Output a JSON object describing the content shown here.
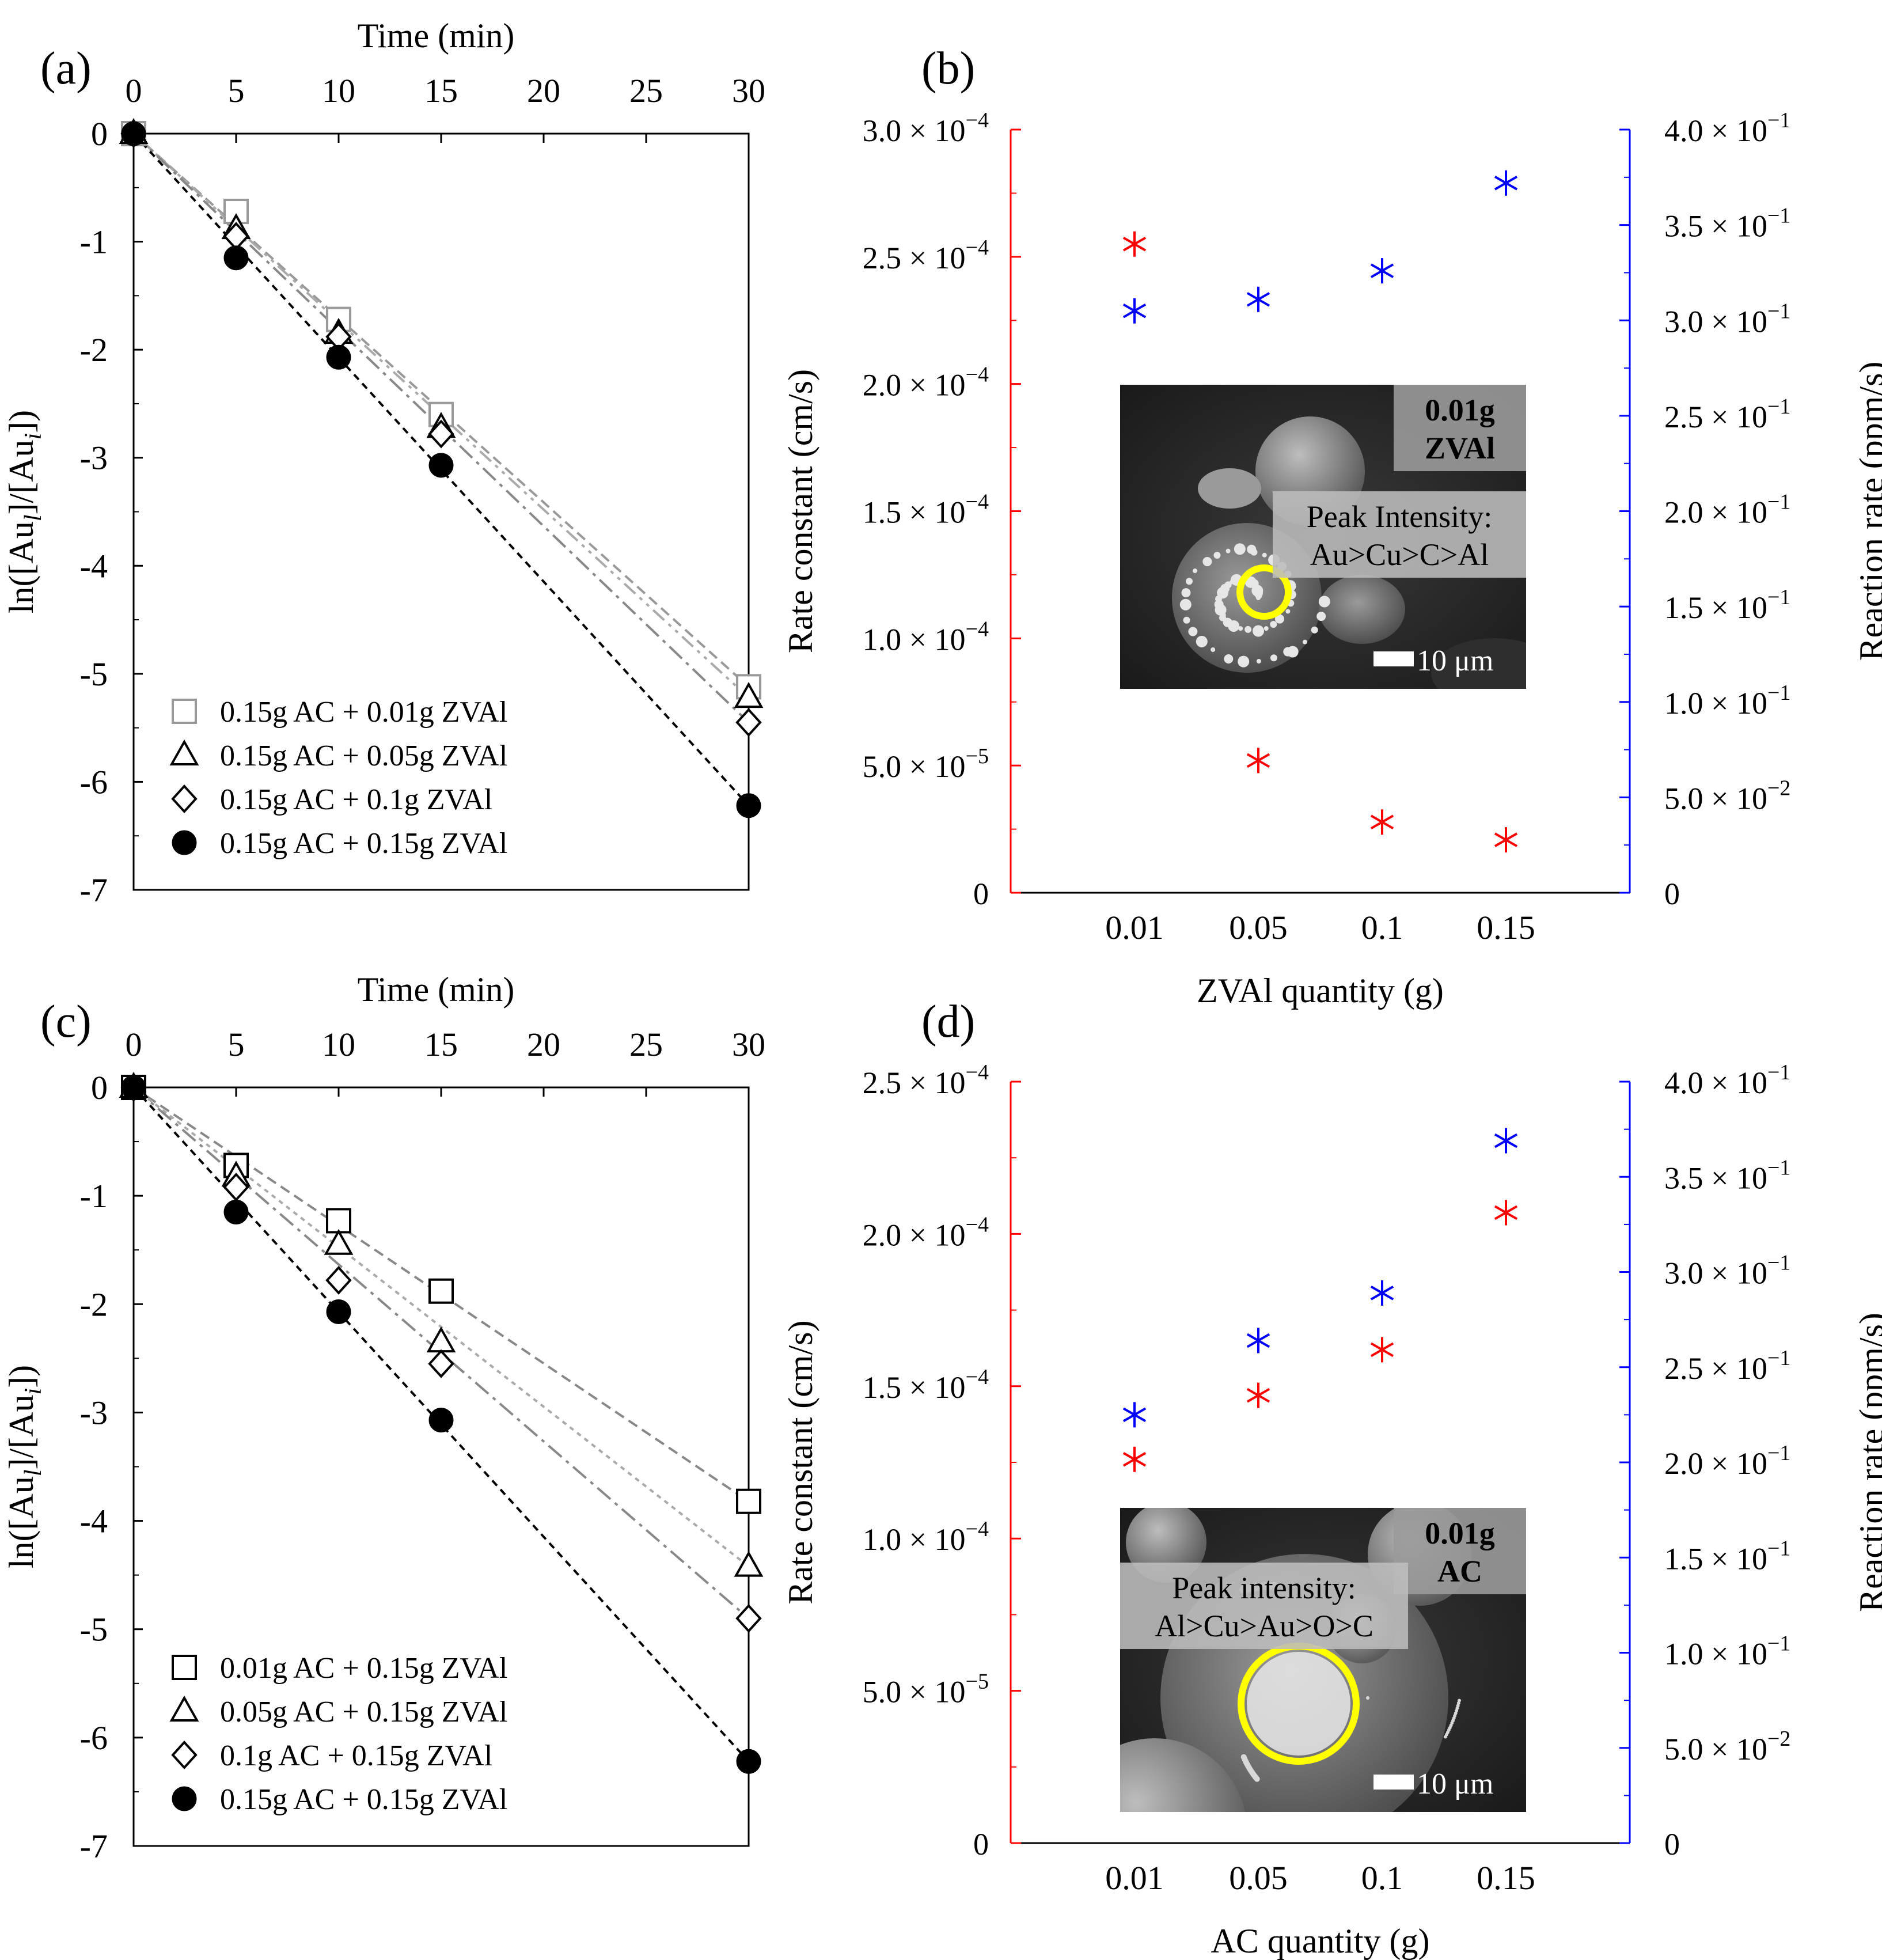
{
  "chart_data": [
    {
      "panel": "(a)",
      "type": "scatter",
      "xlabel": "Time (min)",
      "ylabel_main": "ln([Au",
      "ylabel_sub1": "l",
      "ylabel_mid": "]/[Au",
      "ylabel_sub2": "i",
      "ylabel_end": "])",
      "x_ticks": [
        "0",
        "5",
        "10",
        "15",
        "20",
        "25",
        "30"
      ],
      "y_ticks": [
        "0",
        "-1",
        "-2",
        "-3",
        "-4",
        "-5",
        "-6",
        "-7"
      ],
      "xlim": [
        0,
        30
      ],
      "ylim": [
        -7,
        0
      ],
      "series": [
        {
          "name": "0.15g AC + 0.01g ZVAl",
          "marker": "square",
          "fill": "#ffffff",
          "stroke": "#999999",
          "line": "#999999",
          "dash": "18,10",
          "x": [
            0,
            5,
            10,
            15,
            30
          ],
          "y": [
            0,
            -0.72,
            -1.72,
            -2.6,
            -5.12
          ]
        },
        {
          "name": "0.15g AC + 0.05g ZVAl",
          "marker": "triangle",
          "fill": "#ffffff",
          "stroke": "#000000",
          "line": "#aaaaaa",
          "dash": "26,10,6,10,6,10",
          "x": [
            0,
            5,
            10,
            15,
            30
          ],
          "y": [
            0,
            -0.88,
            -1.85,
            -2.72,
            -5.22
          ]
        },
        {
          "name": "0.15g AC + 0.1g ZVAl",
          "marker": "diamond",
          "fill": "#ffffff",
          "stroke": "#000000",
          "line": "#888888",
          "dash": "30,10,6,10",
          "x": [
            0,
            5,
            10,
            15,
            30
          ],
          "y": [
            0,
            -0.95,
            -1.88,
            -2.78,
            -5.45
          ]
        },
        {
          "name": "0.15g AC + 0.15g ZVAl",
          "marker": "circle",
          "fill": "#000000",
          "stroke": "#000000",
          "line": "#000000",
          "dash": "12,9",
          "x": [
            0,
            5,
            10,
            15,
            30
          ],
          "y": [
            0,
            -1.15,
            -2.07,
            -3.07,
            -6.22
          ]
        }
      ]
    },
    {
      "panel": "(b)",
      "type": "scatter",
      "xlabel": "ZVAl quantity (g)",
      "ylabel": "Rate constant (cm/s)",
      "ylabel2": "Reaction rate (ppm/s)",
      "categories": [
        "0.01",
        "0.05",
        "0.1",
        "0.15"
      ],
      "y_ticks": [
        {
          "v": 0,
          "m": "0",
          "e": ""
        },
        {
          "v": 5e-05,
          "m": "5.0",
          "e": "−5"
        },
        {
          "v": 0.0001,
          "m": "1.0",
          "e": "−4"
        },
        {
          "v": 0.00015,
          "m": "1.5",
          "e": "−4"
        },
        {
          "v": 0.0002,
          "m": "2.0",
          "e": "−4"
        },
        {
          "v": 0.00025,
          "m": "2.5",
          "e": "−4"
        },
        {
          "v": 0.0003,
          "m": "3.0",
          "e": "−4"
        }
      ],
      "y2_ticks": [
        {
          "v": 0,
          "m": "0",
          "e": ""
        },
        {
          "v": 0.05,
          "m": "5.0",
          "e": "−2"
        },
        {
          "v": 0.1,
          "m": "1.0",
          "e": "−1"
        },
        {
          "v": 0.15,
          "m": "1.5",
          "e": "−1"
        },
        {
          "v": 0.2,
          "m": "2.0",
          "e": "−1"
        },
        {
          "v": 0.25,
          "m": "2.5",
          "e": "−1"
        },
        {
          "v": 0.3,
          "m": "3.0",
          "e": "−1"
        },
        {
          "v": 0.35,
          "m": "3.5",
          "e": "−1"
        },
        {
          "v": 0.4,
          "m": "4.0",
          "e": "−1"
        }
      ],
      "times_sign": "× 10",
      "ylim": [
        0,
        0.0003
      ],
      "y2lim": [
        0,
        0.4
      ],
      "axis_colors": {
        "left": "#ff0000",
        "right": "#0000ff"
      },
      "rate_constant": [
        0.000255,
        5.2e-05,
        2.78e-05,
        2.08e-05
      ],
      "reaction_rate": [
        0.305,
        0.311,
        0.326,
        0.372
      ],
      "inset": {
        "label_line1": "0.01g",
        "label_line2": "ZVAl",
        "peak_line1": "Peak Intensity:",
        "peak_line2": "Au>Cu>C>Al",
        "scale": "10 μm"
      }
    },
    {
      "panel": "(c)",
      "type": "scatter",
      "xlabel": "Time (min)",
      "ylabel_main": "ln([Au",
      "ylabel_sub1": "l",
      "ylabel_mid": "]/[Au",
      "ylabel_sub2": "i",
      "ylabel_end": "])",
      "x_ticks": [
        "0",
        "5",
        "10",
        "15",
        "20",
        "25",
        "30"
      ],
      "y_ticks": [
        "0",
        "-1",
        "-2",
        "-3",
        "-4",
        "-5",
        "-6",
        "-7"
      ],
      "xlim": [
        0,
        30
      ],
      "ylim": [
        -7,
        0
      ],
      "series": [
        {
          "name": "0.01g AC + 0.15g ZVAl",
          "marker": "square",
          "fill": "#ffffff",
          "stroke": "#000000",
          "line": "#888888",
          "dash": "18,10",
          "x": [
            0,
            5,
            10,
            15,
            30
          ],
          "y": [
            0,
            -0.72,
            -1.23,
            -1.88,
            -3.82
          ]
        },
        {
          "name": "0.05g AC + 0.15g ZVAl",
          "marker": "triangle",
          "fill": "#ffffff",
          "stroke": "#000000",
          "line": "#aaaaaa",
          "dash": "8,8",
          "x": [
            0,
            5,
            10,
            15,
            30
          ],
          "y": [
            0,
            -0.82,
            -1.45,
            -2.35,
            -4.42
          ]
        },
        {
          "name": "0.1g AC + 0.15g ZVAl",
          "marker": "diamond",
          "fill": "#ffffff",
          "stroke": "#000000",
          "line": "#888888",
          "dash": "30,10,6,10",
          "x": [
            0,
            5,
            10,
            15,
            30
          ],
          "y": [
            0,
            -0.92,
            -1.78,
            -2.55,
            -4.9
          ]
        },
        {
          "name": "0.15g AC + 0.15g ZVAl",
          "marker": "circle",
          "fill": "#000000",
          "stroke": "#000000",
          "line": "#000000",
          "dash": "12,9",
          "x": [
            0,
            5,
            10,
            15,
            30
          ],
          "y": [
            0,
            -1.15,
            -2.07,
            -3.07,
            -6.22
          ]
        }
      ]
    },
    {
      "panel": "(d)",
      "type": "scatter",
      "xlabel": "AC quantity (g)",
      "ylabel": "Rate constant (cm/s)",
      "ylabel2": "Reaction rate (ppm/s)",
      "categories": [
        "0.01",
        "0.05",
        "0.1",
        "0.15"
      ],
      "y_ticks": [
        {
          "v": 0,
          "m": "0",
          "e": ""
        },
        {
          "v": 5e-05,
          "m": "5.0",
          "e": "−5"
        },
        {
          "v": 0.0001,
          "m": "1.0",
          "e": "−4"
        },
        {
          "v": 0.00015,
          "m": "1.5",
          "e": "−4"
        },
        {
          "v": 0.0002,
          "m": "2.0",
          "e": "−4"
        },
        {
          "v": 0.00025,
          "m": "2.5",
          "e": "−4"
        }
      ],
      "y2_ticks": [
        {
          "v": 0,
          "m": "0",
          "e": ""
        },
        {
          "v": 0.05,
          "m": "5.0",
          "e": "−2"
        },
        {
          "v": 0.1,
          "m": "1.0",
          "e": "−1"
        },
        {
          "v": 0.15,
          "m": "1.5",
          "e": "−1"
        },
        {
          "v": 0.2,
          "m": "2.0",
          "e": "−1"
        },
        {
          "v": 0.25,
          "m": "2.5",
          "e": "−1"
        },
        {
          "v": 0.3,
          "m": "3.0",
          "e": "−1"
        },
        {
          "v": 0.35,
          "m": "3.5",
          "e": "−1"
        },
        {
          "v": 0.4,
          "m": "4.0",
          "e": "−1"
        }
      ],
      "times_sign": "× 10",
      "ylim": [
        0,
        0.00025
      ],
      "y2lim": [
        0,
        0.4
      ],
      "axis_colors": {
        "left": "#ff0000",
        "right": "#0000ff"
      },
      "rate_constant": [
        0.000126,
        0.000147,
        0.000162,
        0.000207
      ],
      "reaction_rate": [
        0.225,
        0.264,
        0.289,
        0.369
      ],
      "inset": {
        "label_line1": "0.01g",
        "label_line2": "AC",
        "peak_line1": "Peak intensity:",
        "peak_line2": "Al>Cu>Au>O>C",
        "scale": "10 μm"
      }
    }
  ]
}
